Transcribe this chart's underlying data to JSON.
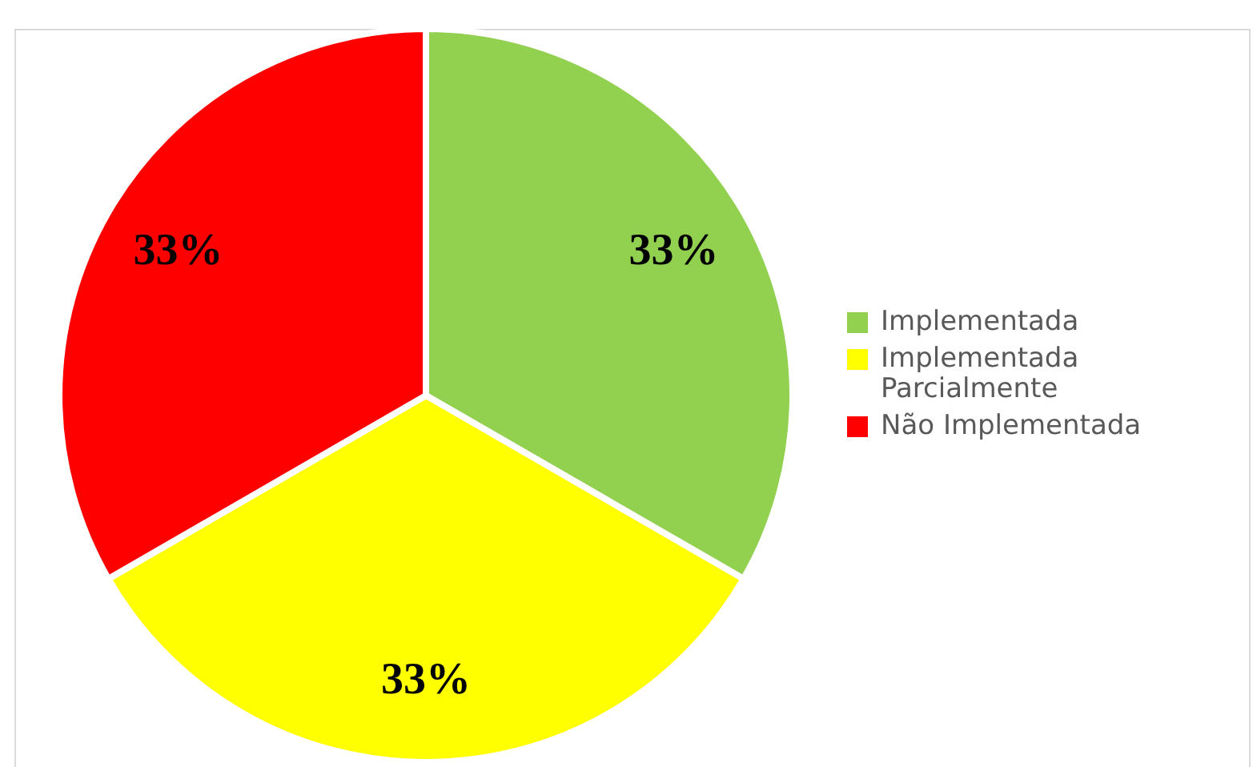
{
  "chart_data": {
    "type": "pie",
    "categories": [
      "Implementada",
      "Implementada Parcialmente",
      "Não Implementada"
    ],
    "values": [
      33,
      33,
      33
    ],
    "colors": [
      "#92d050",
      "#ffff00",
      "#ff0000"
    ],
    "value_labels": [
      "33%",
      "33%",
      "33%"
    ],
    "legend": "right"
  }
}
